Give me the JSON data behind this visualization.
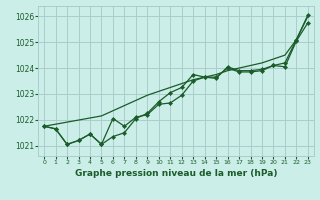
{
  "bg_color": "#cceee8",
  "grid_color": "#aacccc",
  "line_color": "#1a5c2a",
  "marker_color": "#1a5c2a",
  "xlabel": "Graphe pression niveau de la mer (hPa)",
  "ylim": [
    1020.6,
    1026.4
  ],
  "xlim": [
    -0.5,
    23.5
  ],
  "yticks": [
    1021,
    1022,
    1023,
    1024,
    1025,
    1026
  ],
  "xticks": [
    0,
    1,
    2,
    3,
    4,
    5,
    6,
    7,
    8,
    9,
    10,
    11,
    12,
    13,
    14,
    15,
    16,
    17,
    18,
    19,
    20,
    21,
    22,
    23
  ],
  "smooth_line": [
    1021.75,
    1021.83,
    1021.91,
    1021.99,
    1022.07,
    1022.15,
    1022.35,
    1022.55,
    1022.75,
    1022.95,
    1023.1,
    1023.25,
    1023.4,
    1023.55,
    1023.65,
    1023.75,
    1023.9,
    1024.0,
    1024.1,
    1024.2,
    1024.35,
    1024.5,
    1025.1,
    1026.0
  ],
  "series1": [
    1021.75,
    1021.65,
    1021.05,
    1021.2,
    1021.45,
    1021.05,
    1021.35,
    1021.5,
    1022.05,
    1022.25,
    1022.7,
    1023.05,
    1023.25,
    1023.75,
    1023.65,
    1023.65,
    1024.0,
    1023.85,
    1023.85,
    1023.9,
    1024.1,
    1024.05,
    1025.05,
    1025.75
  ],
  "series2": [
    1021.75,
    1021.65,
    1021.05,
    1021.2,
    1021.45,
    1021.05,
    1022.05,
    1021.75,
    1022.1,
    1022.2,
    1022.6,
    1022.65,
    1022.95,
    1023.5,
    1023.65,
    1023.6,
    1024.05,
    1023.9,
    1023.9,
    1023.95,
    1024.1,
    1024.2,
    1025.1,
    1026.05
  ]
}
